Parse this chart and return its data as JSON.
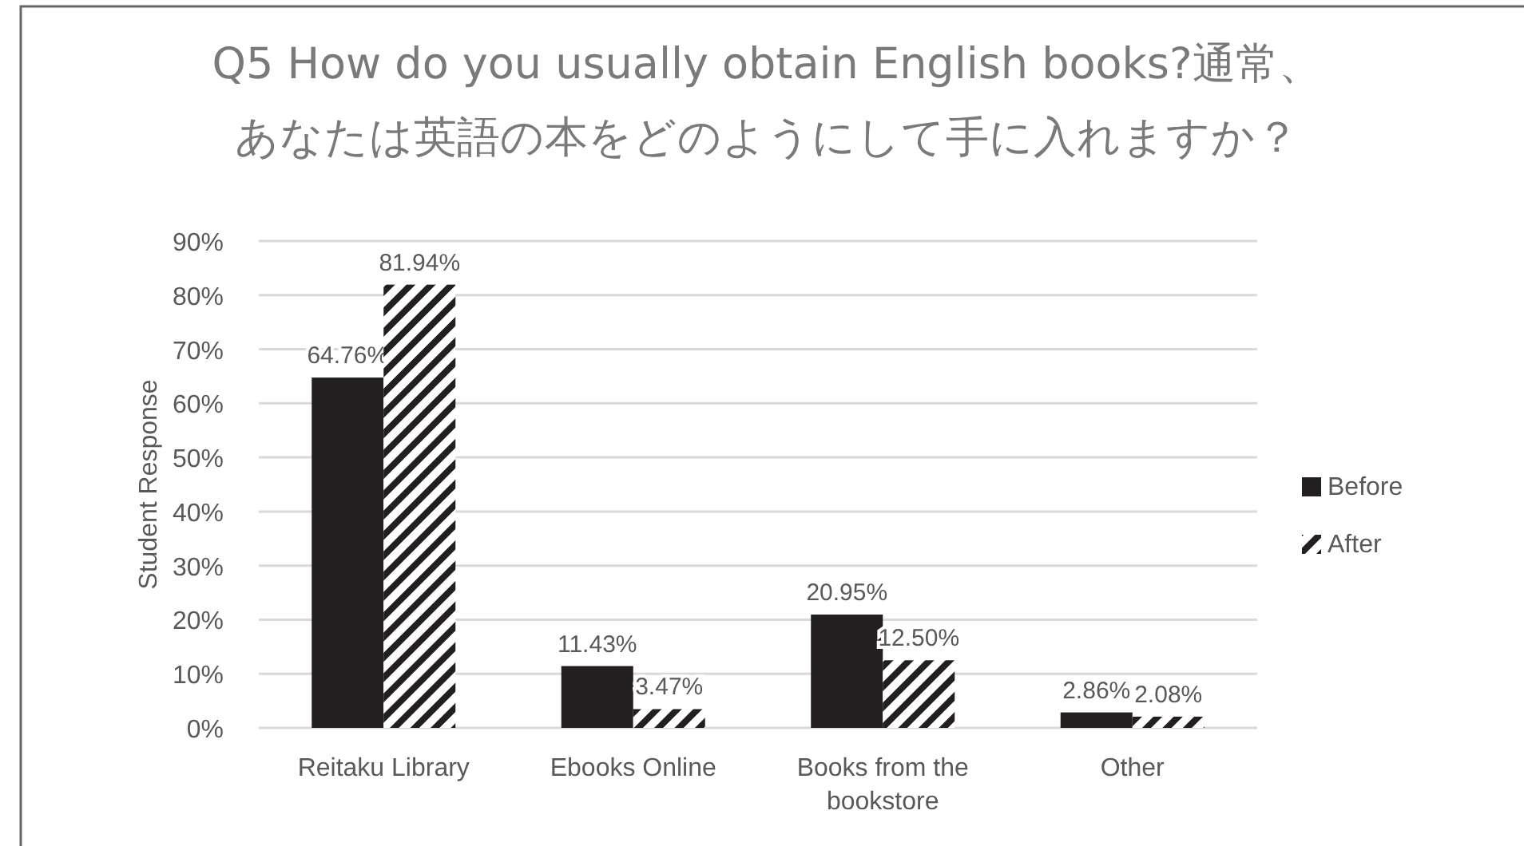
{
  "chart_data": {
    "type": "bar",
    "title": "Q5 How do you usually obtain English books?通常、あなたは英語の本をどのようにして手に入れますか？",
    "ylabel": "Student Response",
    "categories": [
      "Reitaku Library",
      "Ebooks Online",
      "Books from the bookstore",
      "Other"
    ],
    "series": [
      {
        "name": "Before",
        "color": "#231f20",
        "values": [
          64.76,
          11.43,
          20.95,
          2.86
        ],
        "value_labels": [
          "64.76%",
          "11.43%",
          "20.95%",
          "2.86%"
        ]
      },
      {
        "name": "After",
        "color": "#231f20",
        "values": [
          81.94,
          3.47,
          12.5,
          2.08
        ],
        "value_labels": [
          "81.94%",
          "3.47%",
          "12.50%",
          "2.08%"
        ]
      }
    ],
    "ylim": [
      0,
      90
    ],
    "yticks": [
      {
        "value": 0,
        "label": "0%"
      },
      {
        "value": 10,
        "label": "10%"
      },
      {
        "value": 20,
        "label": "20%"
      },
      {
        "value": 30,
        "label": "30%"
      },
      {
        "value": 40,
        "label": "40%"
      },
      {
        "value": 50,
        "label": "50%"
      },
      {
        "value": 60,
        "label": "60%"
      },
      {
        "value": 70,
        "label": "70%"
      },
      {
        "value": 80,
        "label": "80%"
      },
      {
        "value": 90,
        "label": "90%"
      }
    ],
    "grid": "y",
    "legend": "right"
  }
}
